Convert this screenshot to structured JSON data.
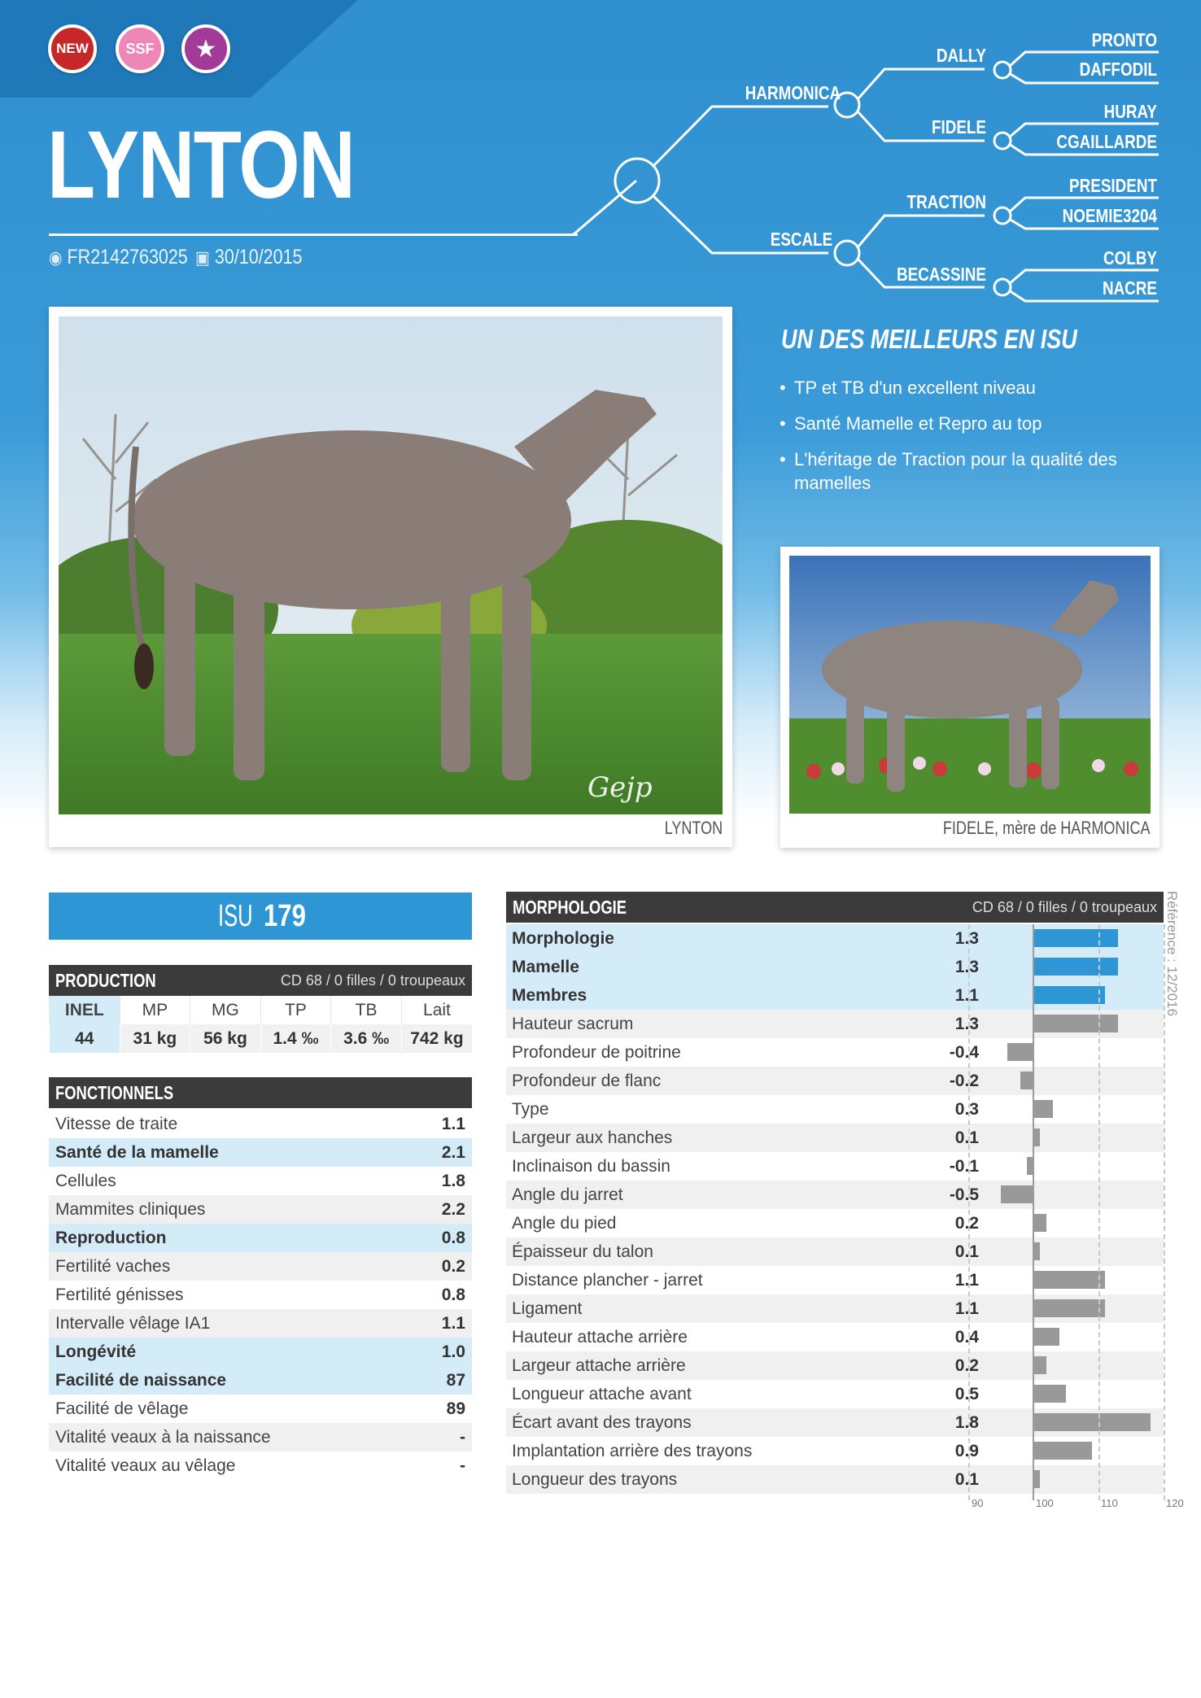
{
  "badges": {
    "new": "NEW",
    "ssf": "SSF",
    "star": "★"
  },
  "animal": {
    "name": "LYNTON",
    "id": "FR2142763025",
    "birth_date": "30/10/2015"
  },
  "pedigree": {
    "sire": "HARMONICA",
    "dam": "ESCALE",
    "ss": "DALLY",
    "sd": "FIDELE",
    "ds": "TRACTION",
    "dd": "BECASSINE",
    "sss": "PRONTO",
    "ssd": "DAFFODIL",
    "sds": "HURAY",
    "sdd": "CGAILLARDE",
    "dss": "PRESIDENT",
    "dsd": "NOEMIE3204",
    "dds": "COLBY",
    "ddd": "NACRE"
  },
  "photos": {
    "main_caption": "LYNTON",
    "side_caption": "FIDELE, mère de HARMONICA",
    "watermark": "Gejp"
  },
  "headline": "UN DES MEILLEURS EN ISU",
  "bullets": [
    "TP et TB d'un excellent niveau",
    "Santé Mamelle et Repro au top",
    "L'héritage de Traction pour la qualité des mamelles"
  ],
  "isu": {
    "label": "ISU",
    "value": "179"
  },
  "production": {
    "title": "PRODUCTION",
    "meta": "CD 68 / 0 filles / 0 troupeaux",
    "headers": [
      "INEL",
      "MP",
      "MG",
      "TP",
      "TB",
      "Lait"
    ],
    "values": [
      "44",
      "31 kg",
      "56 kg",
      "1.4 ‰",
      "3.6 ‰",
      "742 kg"
    ]
  },
  "fonctionnels": {
    "title": "FONCTIONNELS",
    "rows": [
      {
        "label": "Vitesse de traite",
        "value": "1.1",
        "hl": false
      },
      {
        "label": "Santé de la mamelle",
        "value": "2.1",
        "hl": true
      },
      {
        "label": "Cellules",
        "value": "1.8",
        "hl": false
      },
      {
        "label": "Mammites cliniques",
        "value": "2.2",
        "hl": false
      },
      {
        "label": "Reproduction",
        "value": "0.8",
        "hl": true
      },
      {
        "label": "Fertilité vaches",
        "value": "0.2",
        "hl": false
      },
      {
        "label": "Fertilité génisses",
        "value": "0.8",
        "hl": false
      },
      {
        "label": "Intervalle vêlage IA1",
        "value": "1.1",
        "hl": false
      },
      {
        "label": "Longévité",
        "value": "1.0",
        "hl": true
      },
      {
        "label": "Facilité de naissance",
        "value": "87",
        "hl": true
      },
      {
        "label": "Facilité de vêlage",
        "value": "89",
        "hl": false
      },
      {
        "label": "Vitalité veaux à la naissance",
        "value": "-",
        "hl": false
      },
      {
        "label": "Vitalité veaux au vêlage",
        "value": "-",
        "hl": false
      }
    ]
  },
  "morphologie": {
    "title": "MORPHOLOGIE",
    "meta": "CD 68 / 0 filles / 0 troupeaux",
    "rows": [
      {
        "label": "Morphologie",
        "value": 1.3,
        "display": "1.3",
        "hl": true
      },
      {
        "label": "Mamelle",
        "value": 1.3,
        "display": "1.3",
        "hl": true
      },
      {
        "label": "Membres",
        "value": 1.1,
        "display": "1.1",
        "hl": true
      },
      {
        "label": "Hauteur sacrum",
        "value": 1.3,
        "display": "1.3",
        "hl": false
      },
      {
        "label": "Profondeur de poitrine",
        "value": -0.4,
        "display": "-0.4",
        "hl": false
      },
      {
        "label": "Profondeur de flanc",
        "value": -0.2,
        "display": "-0.2",
        "hl": false
      },
      {
        "label": "Type",
        "value": 0.3,
        "display": "0.3",
        "hl": false
      },
      {
        "label": "Largeur aux hanches",
        "value": 0.1,
        "display": "0.1",
        "hl": false
      },
      {
        "label": "Inclinaison du bassin",
        "value": -0.1,
        "display": "-0.1",
        "hl": false
      },
      {
        "label": "Angle du jarret",
        "value": -0.5,
        "display": "-0.5",
        "hl": false
      },
      {
        "label": "Angle du pied",
        "value": 0.2,
        "display": "0.2",
        "hl": false
      },
      {
        "label": "Épaisseur du talon",
        "value": 0.1,
        "display": "0.1",
        "hl": false
      },
      {
        "label": "Distance plancher - jarret",
        "value": 1.1,
        "display": "1.1",
        "hl": false
      },
      {
        "label": "Ligament",
        "value": 1.1,
        "display": "1.1",
        "hl": false
      },
      {
        "label": "Hauteur attache arrière",
        "value": 0.4,
        "display": "0.4",
        "hl": false
      },
      {
        "label": "Largeur attache arrière",
        "value": 0.2,
        "display": "0.2",
        "hl": false
      },
      {
        "label": "Longueur attache avant",
        "value": 0.5,
        "display": "0.5",
        "hl": false
      },
      {
        "label": "Écart avant des trayons",
        "value": 1.8,
        "display": "1.8",
        "hl": false
      },
      {
        "label": "Implantation arrière des trayons",
        "value": 0.9,
        "display": "0.9",
        "hl": false
      },
      {
        "label": "Longueur des trayons",
        "value": 0.1,
        "display": "0.1",
        "hl": false
      }
    ],
    "axis_ticks": [
      "90",
      "100",
      "110",
      "120"
    ],
    "axis_range": [
      -0.5,
      1.8
    ],
    "colors": {
      "highlight_bar": "#2f96d5",
      "bar": "#999999"
    }
  },
  "reference": "Référence : 12/2016"
}
